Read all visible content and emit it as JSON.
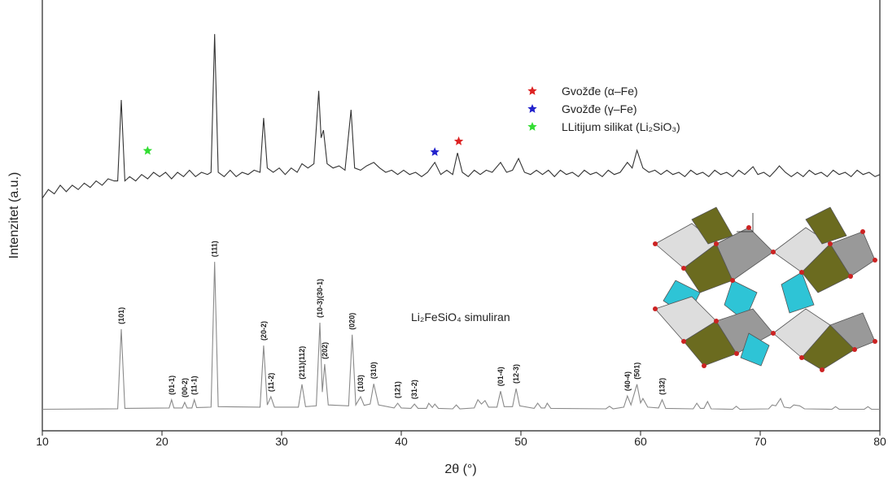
{
  "chart_data": {
    "type": "line",
    "xlabel": "2θ (°)",
    "ylabel": "Intenzitet (a.u.)",
    "xlim": [
      10,
      80
    ],
    "xticks": [
      10,
      20,
      30,
      40,
      50,
      60,
      70,
      80
    ],
    "ylim": [
      0,
      100
    ],
    "series": [
      {
        "color": "#333333",
        "x": [
          10,
          10.5,
          11,
          11.5,
          12,
          12.5,
          13,
          13.5,
          14,
          14.5,
          15,
          15.5,
          16,
          16.3,
          16.6,
          16.9,
          17.3,
          17.8,
          18.3,
          18.8,
          19.3,
          19.8,
          20.3,
          20.8,
          21.3,
          21.8,
          22.3,
          22.8,
          23.3,
          23.8,
          24.1,
          24.4,
          24.7,
          25.2,
          25.7,
          26.2,
          26.7,
          27.2,
          27.7,
          28.2,
          28.5,
          28.8,
          29.3,
          29.8,
          30.3,
          30.8,
          31.3,
          31.7,
          32.2,
          32.7,
          33.1,
          33.3,
          33.5,
          33.8,
          34.3,
          34.8,
          35.3,
          35.8,
          36.1,
          36.6,
          37.1,
          37.7,
          38.2,
          38.7,
          39.2,
          39.7,
          40.2,
          40.7,
          41.2,
          41.7,
          42.2,
          42.8,
          43.3,
          43.8,
          44.3,
          44.7,
          45.1,
          45.6,
          46.1,
          46.6,
          47.1,
          47.6,
          48.3,
          48.8,
          49.3,
          49.8,
          50.3,
          50.8,
          51.3,
          51.8,
          52.3,
          52.8,
          53.3,
          53.8,
          54.3,
          54.8,
          55.3,
          55.8,
          56.3,
          56.8,
          57.3,
          57.8,
          58.3,
          58.9,
          59.3,
          59.7,
          60.2,
          60.7,
          61.2,
          61.7,
          62.2,
          62.7,
          63.2,
          63.7,
          64.2,
          64.7,
          65.2,
          65.7,
          66.2,
          66.7,
          67.2,
          67.7,
          68.2,
          68.7,
          69.4,
          69.8,
          70.3,
          70.8,
          71.3,
          71.6,
          72.1,
          72.6,
          73.1,
          73.6,
          74.1,
          74.6,
          75.1,
          75.6,
          76.1,
          76.6,
          77.1,
          77.6,
          78.1,
          78.6,
          79.1,
          79.6,
          80
        ],
        "values": [
          54,
          56,
          55,
          57,
          55.5,
          57,
          56,
          57.5,
          56.5,
          58,
          57,
          58.5,
          58,
          58,
          76.8,
          58,
          59,
          58,
          59.5,
          58.5,
          60,
          59,
          60,
          58.5,
          60,
          59,
          60.5,
          59,
          60,
          59.5,
          60,
          92.1,
          60,
          59,
          60.5,
          59,
          60,
          59.5,
          60.5,
          60,
          72.6,
          61,
          60,
          61,
          59.5,
          61,
          60,
          62,
          61,
          62,
          78.9,
          68,
          69.8,
          62,
          61,
          61.5,
          60.5,
          74.5,
          61,
          60.5,
          61.5,
          62.3,
          61,
          60,
          60.5,
          59.5,
          60.5,
          59.5,
          60,
          59,
          60,
          62.3,
          59.5,
          60.5,
          59.5,
          64.5,
          60,
          59,
          60.5,
          59.5,
          60.5,
          60,
          62.3,
          60,
          60.5,
          63.2,
          60,
          59.5,
          60.5,
          59.5,
          60.5,
          59,
          60.5,
          59.5,
          60,
          59,
          60.5,
          59.5,
          60,
          59,
          60.5,
          59.5,
          60,
          62.3,
          61,
          65.1,
          61,
          60,
          60.5,
          59.5,
          60.5,
          59.5,
          60,
          59,
          60.5,
          59.5,
          60,
          59,
          60.5,
          59.5,
          60,
          59,
          60.5,
          59.5,
          61.3,
          59.5,
          60,
          59,
          60.5,
          61.5,
          60,
          59,
          60,
          59,
          60.5,
          59.5,
          60,
          59,
          60.5,
          59.5,
          60,
          59,
          60.5,
          59.5,
          60,
          59,
          59.5
        ]
      },
      {
        "color": "#8a8a8a",
        "x": [
          10,
          16.3,
          16.6,
          16.9,
          20.6,
          20.8,
          21.0,
          21.7,
          21.9,
          22.1,
          22.5,
          22.7,
          22.9,
          24.1,
          24.4,
          24.7,
          28.2,
          28.5,
          28.8,
          29.1,
          29.4,
          31.4,
          31.7,
          32.0,
          32.9,
          33.2,
          33.4,
          33.6,
          33.9,
          35.6,
          35.9,
          36.2,
          36.6,
          36.9,
          37.4,
          37.7,
          38.1,
          39.4,
          39.7,
          40.0,
          40.8,
          41.1,
          41.4,
          42.1,
          42.3,
          42.6,
          42.8,
          43.1,
          44.3,
          44.6,
          44.9,
          46.1,
          46.4,
          46.7,
          47.0,
          47.3,
          48.0,
          48.3,
          48.6,
          49.3,
          49.6,
          49.9,
          51.1,
          51.4,
          51.7,
          52.0,
          52.2,
          52.5,
          57.1,
          57.4,
          57.7,
          58.6,
          58.9,
          59.2,
          59.7,
          60.0,
          60.2,
          60.6,
          61.5,
          61.8,
          62.1,
          64.4,
          64.7,
          65.0,
          65.3,
          65.6,
          65.9,
          67.7,
          68.0,
          68.3,
          70.7,
          71.0,
          71.3,
          71.7,
          72.0,
          72.5,
          72.8,
          73.3,
          73.7,
          76.0,
          76.3,
          76.6,
          78.7,
          79.0,
          79.3,
          80
        ],
        "values": [
          5,
          5.1,
          23.6,
          5.2,
          5.3,
          7.2,
          5.3,
          5.3,
          6.6,
          5.3,
          5.3,
          7.2,
          5.4,
          5.5,
          39.2,
          5.6,
          5.5,
          19.8,
          6,
          7.9,
          5.5,
          5.5,
          10.8,
          5.6,
          5.8,
          25.1,
          9,
          15.5,
          6,
          5.8,
          22.3,
          6,
          7.9,
          5.9,
          6.2,
          10.9,
          6,
          5.3,
          6.4,
          5.3,
          5.2,
          6.2,
          5.2,
          5.2,
          6.4,
          5.4,
          6.2,
          5.2,
          5.1,
          6,
          5.1,
          5.3,
          7.2,
          6.2,
          7,
          5.5,
          5.5,
          9.2,
          5.6,
          5.6,
          9.8,
          5.8,
          5.2,
          6.4,
          5.3,
          5.3,
          6.4,
          5.2,
          5.1,
          5.7,
          5.1,
          5.5,
          8.1,
          6,
          10.8,
          6.5,
          7.5,
          5.5,
          5.3,
          7.2,
          5.2,
          5.1,
          6.4,
          5.2,
          5.2,
          6.8,
          5.1,
          5,
          5.7,
          5,
          5.1,
          6,
          5.8,
          7.5,
          5.5,
          5.3,
          6,
          5.8,
          5.1,
          5,
          5.6,
          5,
          5,
          5.6,
          5,
          5
        ]
      }
    ],
    "peak_labels": [
      {
        "text": "(101)",
        "x": 16.6
      },
      {
        "text": "(01-1)",
        "x": 20.8
      },
      {
        "text": "(00-2)",
        "x": 21.9
      },
      {
        "text": "(11-1)",
        "x": 22.7
      },
      {
        "text": "(111)",
        "x": 24.4
      },
      {
        "text": "(20-2)",
        "x": 28.5
      },
      {
        "text": "(11-2)",
        "x": 29.1
      },
      {
        "text": "(211)(112)",
        "x": 31.7
      },
      {
        "text": "(10-3)(30-1)",
        "x": 33.2
      },
      {
        "text": "(202)",
        "x": 33.6
      },
      {
        "text": "(020)",
        "x": 35.9
      },
      {
        "text": "(103)",
        "x": 36.6
      },
      {
        "text": "(310)",
        "x": 37.7
      },
      {
        "text": "(121)",
        "x": 39.7
      },
      {
        "text": "(31-2)",
        "x": 41.1
      },
      {
        "text": "(01-4)",
        "x": 48.3
      },
      {
        "text": "(12-3)",
        "x": 49.6
      },
      {
        "text": "(40-4)",
        "x": 58.9
      },
      {
        "text": "(501)",
        "x": 59.7
      },
      {
        "text": "(132)",
        "x": 61.8
      }
    ],
    "markers": [
      {
        "x": 18.8,
        "y": 65,
        "color": "#33dd33"
      },
      {
        "x": 42.8,
        "y": 64.7,
        "color": "#2222cc"
      },
      {
        "x": 44.8,
        "y": 67.2,
        "color": "#dd2222"
      }
    ],
    "legend": [
      {
        "label": "Gvožđe (α–Fe)",
        "color": "#dd2222"
      },
      {
        "label": "Gvožđe (γ–Fe)",
        "color": "#2222cc"
      },
      {
        "label": "LLitijum silikat (Li₂SiO₃)",
        "color": "#33dd33"
      }
    ],
    "annotation": "Li₂FeSiO₄ simuliran"
  }
}
